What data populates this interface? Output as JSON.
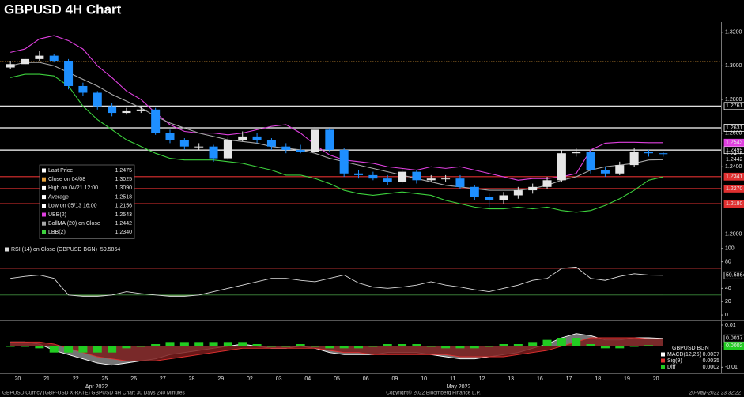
{
  "chart_data": [
    {
      "type": "candlestick",
      "title": "GBPUSD 4H Chart",
      "categories": [
        "20",
        null,
        "21",
        null,
        "22",
        null,
        "25",
        null,
        "26",
        null,
        "27",
        null,
        "28",
        null,
        "29",
        null,
        "02",
        null,
        "03",
        null,
        "04",
        null,
        "05",
        null,
        "06",
        null,
        "09",
        null,
        "10",
        null,
        "11",
        null,
        "12",
        null,
        "13",
        null,
        "16",
        null,
        "17",
        null,
        "18",
        null,
        "19",
        null,
        "20",
        null
      ],
      "months": [
        "Apr 2022",
        "May 2022"
      ],
      "open": [
        1.299,
        1.301,
        1.304,
        1.306,
        1.303,
        1.288,
        1.284,
        1.276,
        1.272,
        1.273,
        1.274,
        1.26,
        1.256,
        1.252,
        1.252,
        1.245,
        1.256,
        1.258,
        1.256,
        1.252,
        1.25,
        1.249,
        1.262,
        1.25,
        1.236,
        1.235,
        1.233,
        1.231,
        1.237,
        1.232,
        1.233,
        1.233,
        1.228,
        1.222,
        1.22,
        1.223,
        1.226,
        1.228,
        1.232,
        1.248,
        1.249,
        1.238,
        1.236,
        1.241,
        1.249,
        1.248
      ],
      "high": [
        1.303,
        1.306,
        1.309,
        1.307,
        1.304,
        1.29,
        1.285,
        1.278,
        1.275,
        1.276,
        1.275,
        1.262,
        1.257,
        1.254,
        1.253,
        1.258,
        1.261,
        1.26,
        1.257,
        1.254,
        1.253,
        1.264,
        1.263,
        1.251,
        1.238,
        1.237,
        1.235,
        1.239,
        1.238,
        1.235,
        1.235,
        1.235,
        1.229,
        1.224,
        1.225,
        1.228,
        1.23,
        1.234,
        1.25,
        1.251,
        1.25,
        1.24,
        1.243,
        1.251,
        1.25,
        1.249
      ],
      "low": [
        1.298,
        1.3,
        1.303,
        1.302,
        1.286,
        1.282,
        1.274,
        1.27,
        1.271,
        1.272,
        1.259,
        1.254,
        1.25,
        1.25,
        1.243,
        1.244,
        1.255,
        1.254,
        1.25,
        1.248,
        1.248,
        1.248,
        1.249,
        1.234,
        1.233,
        1.232,
        1.229,
        1.23,
        1.23,
        1.231,
        1.231,
        1.227,
        1.22,
        1.216,
        1.218,
        1.221,
        1.224,
        1.227,
        1.231,
        1.246,
        1.236,
        1.234,
        1.235,
        1.24,
        1.246,
        1.246
      ],
      "close": [
        1.301,
        1.304,
        1.306,
        1.303,
        1.288,
        1.284,
        1.276,
        1.272,
        1.273,
        1.274,
        1.26,
        1.256,
        1.252,
        1.252,
        1.245,
        1.256,
        1.258,
        1.256,
        1.252,
        1.25,
        1.249,
        1.262,
        1.25,
        1.236,
        1.235,
        1.233,
        1.231,
        1.237,
        1.232,
        1.233,
        1.233,
        1.228,
        1.222,
        1.22,
        1.223,
        1.226,
        1.228,
        1.232,
        1.248,
        1.249,
        1.238,
        1.236,
        1.241,
        1.249,
        1.248,
        1.2475
      ],
      "up_color": "#e6e6e6",
      "down_color": "#1e8fff",
      "bands": [
        {
          "key": "upper",
          "color": "#e040e0",
          "values": [
            1.308,
            1.31,
            1.316,
            1.318,
            1.315,
            1.31,
            1.3,
            1.293,
            1.285,
            1.28,
            1.272,
            1.265,
            1.261,
            1.26,
            1.26,
            1.259,
            1.26,
            1.262,
            1.264,
            1.265,
            1.26,
            1.253,
            1.247,
            1.244,
            1.243,
            1.242,
            1.24,
            1.239,
            1.238,
            1.24,
            1.239,
            1.24,
            1.238,
            1.236,
            1.234,
            1.232,
            1.233,
            1.233,
            1.234,
            1.236,
            1.25,
            1.254,
            1.2545,
            1.2545,
            1.2543,
            1.2543
          ]
        },
        {
          "key": "middle",
          "color": "#a8a8a8",
          "values": [
            1.3,
            1.302,
            1.302,
            1.3,
            1.296,
            1.292,
            1.288,
            1.283,
            1.279,
            1.275,
            1.27,
            1.266,
            1.263,
            1.26,
            1.258,
            1.256,
            1.255,
            1.254,
            1.252,
            1.251,
            1.25,
            1.248,
            1.245,
            1.243,
            1.241,
            1.239,
            1.237,
            1.235,
            1.233,
            1.231,
            1.229,
            1.228,
            1.227,
            1.226,
            1.226,
            1.226,
            1.227,
            1.229,
            1.232,
            1.234,
            1.238,
            1.24,
            1.241,
            1.242,
            1.244,
            1.2442
          ]
        },
        {
          "key": "lower",
          "color": "#3dd13d",
          "values": [
            1.293,
            1.295,
            1.295,
            1.294,
            1.288,
            1.276,
            1.268,
            1.262,
            1.256,
            1.252,
            1.248,
            1.245,
            1.244,
            1.244,
            1.244,
            1.243,
            1.242,
            1.24,
            1.238,
            1.235,
            1.235,
            1.233,
            1.23,
            1.226,
            1.224,
            1.223,
            1.224,
            1.225,
            1.224,
            1.223,
            1.22,
            1.218,
            1.216,
            1.215,
            1.215,
            1.216,
            1.215,
            1.216,
            1.214,
            1.213,
            1.214,
            1.217,
            1.221,
            1.226,
            1.232,
            1.234
          ]
        }
      ],
      "ylim": [
        1.196,
        1.326
      ],
      "yticks": [
        {
          "value": 1.32,
          "label": "1.3200"
        },
        {
          "value": 1.3,
          "label": "1.3000"
        },
        {
          "value": 1.28,
          "label": "1.2800"
        },
        {
          "value": 1.26,
          "label": "1.2600"
        },
        {
          "value": 1.24,
          "label": "1.2400"
        },
        {
          "value": 1.2,
          "label": "1.2000"
        }
      ],
      "levels": [
        {
          "value": 1.2761,
          "color": "#ffffff"
        },
        {
          "value": 1.2631,
          "color": "#ffffff"
        },
        {
          "value": 1.2499,
          "color": "#ffffff"
        },
        {
          "value": 1.2341,
          "color": "#e03030"
        },
        {
          "value": 1.227,
          "label": "1.2270",
          "color": "#e03030"
        },
        {
          "value": 1.218,
          "label": "1.2180",
          "color": "#e03030"
        }
      ],
      "legend": [
        {
          "label": "Last Price",
          "value": 1.2475,
          "color": "#ffffff",
          "on_axis": "text"
        },
        {
          "label": "Close on 04/08",
          "value": 1.3025,
          "color": "#e8a33d",
          "line": "dotted"
        },
        {
          "label": "High on 04/21 12:00",
          "value": {
            "value": 1.309,
            "label": "1.3090"
          },
          "color": "#ffffff"
        },
        {
          "label": "Average",
          "value": 1.2518,
          "color": "#ffffff"
        },
        {
          "label": "Low on 05/13 16:00",
          "value": 1.2156,
          "color": "#ffffff"
        },
        {
          "label": "UBB(2)",
          "value": 1.2543,
          "color": "#e040e0",
          "on_axis": "box"
        },
        {
          "label": "BollMA (20) on Close",
          "value": 1.2442,
          "color": "#a8a8a8",
          "on_axis": "text"
        },
        {
          "label": "LBB(2)",
          "value": {
            "value": 1.234,
            "label": "1.2340"
          },
          "color": "#3dd13d"
        }
      ]
    },
    {
      "type": "line",
      "title": "RSI (14) on Close (GBPUSD BGN)",
      "values": [
        55,
        58,
        60,
        55,
        30,
        28,
        28,
        30,
        35,
        32,
        30,
        28,
        28,
        30,
        35,
        40,
        45,
        50,
        55,
        55,
        52,
        50,
        55,
        60,
        48,
        42,
        40,
        42,
        45,
        50,
        45,
        42,
        38,
        35,
        40,
        45,
        52,
        55,
        70,
        72,
        55,
        52,
        58,
        62,
        60,
        59.5864
      ],
      "color": "#dcdcdc",
      "fill_below": 30,
      "fill_color": "#6a9a5a",
      "ylim": [
        -7,
        108
      ],
      "yticks": [
        0,
        20,
        40,
        60,
        80,
        100
      ],
      "levels": [
        {
          "value": 70,
          "color": "#b03030"
        },
        {
          "value": 30,
          "color": "#3a8a3a"
        }
      ]
    },
    {
      "type": "combo",
      "legend_title": "GBPUSD BGN",
      "series": [
        {
          "name": "MACD(12,26)",
          "color": "#ffffff",
          "fill": "#8a8a8a",
          "style": "area",
          "values": [
            0.002,
            0.002,
            0.001,
            -0.002,
            -0.004,
            -0.006,
            -0.008,
            -0.009,
            -0.008,
            -0.007,
            -0.006,
            -0.004,
            -0.003,
            -0.002,
            -0.001,
            0.0,
            0.001,
            0.0,
            -0.001,
            -0.001,
            0.0,
            -0.001,
            -0.003,
            -0.004,
            -0.004,
            -0.004,
            -0.003,
            -0.003,
            -0.003,
            -0.004,
            -0.005,
            -0.006,
            -0.006,
            -0.005,
            -0.004,
            -0.003,
            -0.001,
            0.001,
            0.004,
            0.006,
            0.005,
            0.003,
            0.003,
            0.004,
            0.004,
            0.0037
          ]
        },
        {
          "name": "Sig(9)",
          "color": "#e03030",
          "fill": "#7a1c1c",
          "style": "area",
          "values": [
            0.002,
            0.002,
            0.002,
            0.001,
            -0.001,
            -0.003,
            -0.005,
            -0.006,
            -0.007,
            -0.007,
            -0.007,
            -0.006,
            -0.005,
            -0.004,
            -0.003,
            -0.002,
            -0.001,
            -0.001,
            -0.001,
            -0.001,
            -0.001,
            -0.001,
            -0.002,
            -0.003,
            -0.003,
            -0.004,
            -0.004,
            -0.004,
            -0.004,
            -0.004,
            -0.004,
            -0.005,
            -0.005,
            -0.005,
            -0.005,
            -0.004,
            -0.003,
            -0.002,
            0.0,
            0.002,
            0.004,
            0.004,
            0.004,
            0.004,
            0.0035,
            0.0035
          ]
        },
        {
          "name": "Diff",
          "color": "#22cc22",
          "style": "bar",
          "values": [
            0,
            0,
            -0.001,
            -0.003,
            -0.003,
            -0.003,
            -0.003,
            -0.003,
            -0.001,
            0,
            0.001,
            0.002,
            0.002,
            0.002,
            0.002,
            0.002,
            0.002,
            0.001,
            0,
            0,
            0.001,
            0,
            -0.001,
            -0.001,
            -0.001,
            0,
            0.001,
            0.001,
            0.001,
            0,
            -0.001,
            -0.001,
            -0.001,
            0,
            0.001,
            0.001,
            0.002,
            0.003,
            0.004,
            0.004,
            0.001,
            -0.001,
            -0.001,
            0,
            0.0005,
            0.0002
          ]
        }
      ],
      "ylim": [
        -0.0125,
        0.0115
      ],
      "yticks": [
        0.01,
        0,
        -0.01
      ]
    }
  ],
  "footer": {
    "left": "GBPUSD Curncy (GBP-USD X-RATE) GBPUSD 4H Chart 30 Days 240 Minutes",
    "center": "Copyright© 2022 Bloomberg Finance L.P.",
    "right": "20-May-2022 23:32:22"
  }
}
